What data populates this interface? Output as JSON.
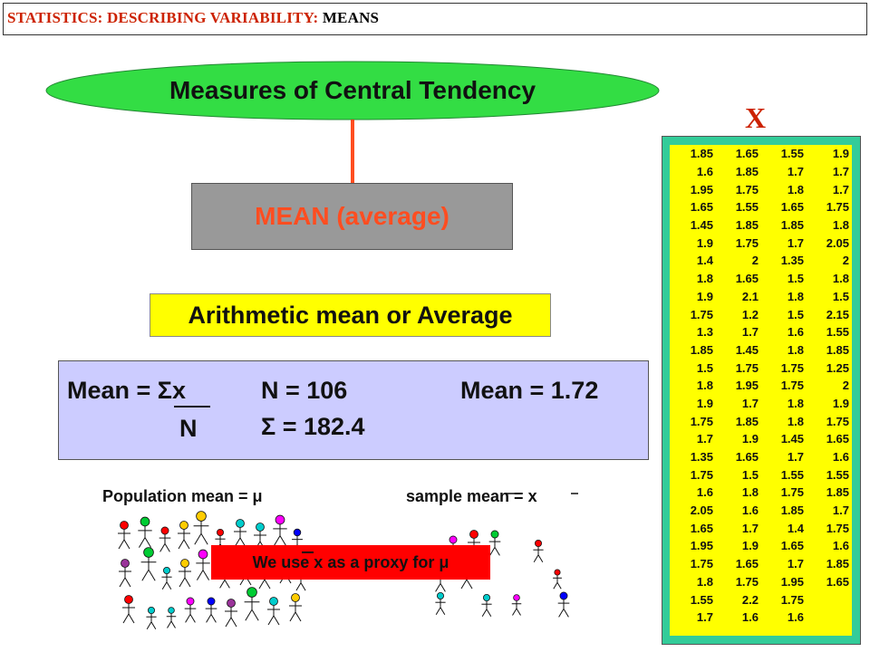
{
  "header": {
    "prefix": "STATISTICS: DESCRIBING VARIABILITY:",
    "suffix": "MEANS"
  },
  "measures_title": "Measures of Central Tendency",
  "mean_box": "MEAN (average)",
  "arith_label": "Arithmetic mean or Average",
  "formula": {
    "mean_eq": "Mean = Σx",
    "denominator": "N",
    "n_value": "N = 106",
    "sigma_value": "Σ = 182.4",
    "mean_value": "Mean = 1.72"
  },
  "population_label": "Population mean = μ",
  "sample_label": "sample mean = x",
  "proxy_label": "We use x as a proxy for μ",
  "table_header": "X",
  "table_rows": [
    [
      "1.85",
      "1.65",
      "1.55",
      "1.9"
    ],
    [
      "1.6",
      "1.85",
      "1.7",
      "1.7"
    ],
    [
      "1.95",
      "1.75",
      "1.8",
      "1.7"
    ],
    [
      "1.65",
      "1.55",
      "1.65",
      "1.75"
    ],
    [
      "1.45",
      "1.85",
      "1.85",
      "1.8"
    ],
    [
      "1.9",
      "1.75",
      "1.7",
      "2.05"
    ],
    [
      "1.4",
      "2",
      "1.35",
      "2"
    ],
    [
      "1.8",
      "1.65",
      "1.5",
      "1.8"
    ],
    [
      "1.9",
      "2.1",
      "1.8",
      "1.5"
    ],
    [
      "1.75",
      "1.2",
      "1.5",
      "2.15"
    ],
    [
      "1.3",
      "1.7",
      "1.6",
      "1.55"
    ],
    [
      "1.85",
      "1.45",
      "1.8",
      "1.85"
    ],
    [
      "1.5",
      "1.75",
      "1.75",
      "1.25"
    ],
    [
      "1.8",
      "1.95",
      "1.75",
      "2"
    ],
    [
      "1.9",
      "1.7",
      "1.8",
      "1.9"
    ],
    [
      "1.75",
      "1.85",
      "1.8",
      "1.75"
    ],
    [
      "1.7",
      "1.9",
      "1.45",
      "1.65"
    ],
    [
      "1.35",
      "1.65",
      "1.7",
      "1.6"
    ],
    [
      "1.75",
      "1.5",
      "1.55",
      "1.55"
    ],
    [
      "1.6",
      "1.8",
      "1.75",
      "1.85"
    ],
    [
      "2.05",
      "1.6",
      "1.85",
      "1.7"
    ],
    [
      "1.65",
      "1.7",
      "1.4",
      "1.75"
    ],
    [
      "1.95",
      "1.9",
      "1.65",
      "1.6"
    ],
    [
      "1.75",
      "1.65",
      "1.7",
      "1.85"
    ],
    [
      "1.8",
      "1.75",
      "1.95",
      "1.65"
    ],
    [
      "1.55",
      "2.2",
      "1.75",
      ""
    ],
    [
      "1.7",
      "1.6",
      "1.6",
      ""
    ]
  ],
  "colors": {
    "header_red": "#cc2200",
    "ellipse_green": "#33dd44",
    "mean_box_gray": "#999999",
    "mean_text_orange": "#ff4d20",
    "arith_yellow": "#ffff00",
    "formula_lavender": "#ccccff",
    "proxy_red": "#ff0000",
    "table_border_teal": "#33cc99",
    "table_yellow": "#ffff00"
  },
  "people_head_colors": [
    "#ff0000",
    "#00cc33",
    "#ff0000",
    "#ffcc00",
    "#ffcc00",
    "#ff0000",
    "#00cccc",
    "#00cccc",
    "#ff00ff",
    "#0000ff",
    "#993399",
    "#00cc33",
    "#00cccc",
    "#ffcc00",
    "#ff00ff"
  ]
}
